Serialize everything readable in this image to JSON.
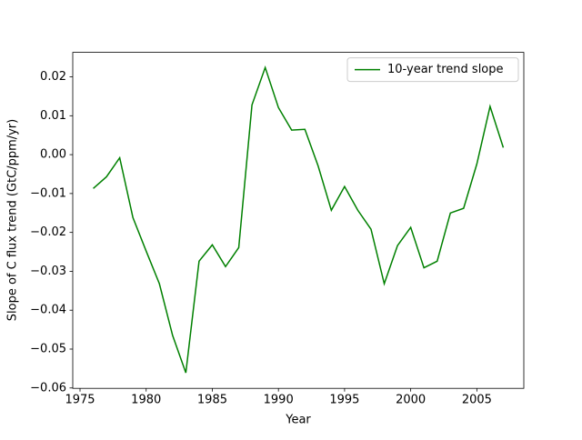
{
  "chart_data": {
    "type": "line",
    "xlabel": "Year",
    "ylabel": "Slope of C flux trend (GtC/ppm/yr)",
    "x": [
      1976,
      1977,
      1978,
      1979,
      1980,
      1981,
      1982,
      1983,
      1984,
      1985,
      1986,
      1987,
      1988,
      1989,
      1990,
      1991,
      1992,
      1993,
      1994,
      1995,
      1996,
      1997,
      1998,
      1999,
      2000,
      2001,
      2002,
      2003,
      2004,
      2005,
      2006,
      2007
    ],
    "series": [
      {
        "name": "10-year trend slope",
        "color": "#008000",
        "values": [
          -0.0087,
          -0.0057,
          -0.0008,
          -0.0162,
          -0.0248,
          -0.0332,
          -0.0465,
          -0.0561,
          -0.0274,
          -0.0232,
          -0.0288,
          -0.0239,
          0.0128,
          0.0224,
          0.0121,
          0.0063,
          0.0065,
          -0.0029,
          -0.0143,
          -0.0082,
          -0.0143,
          -0.0192,
          -0.0332,
          -0.0234,
          -0.0187,
          -0.0291,
          -0.0274,
          -0.015,
          -0.0138,
          -0.0024,
          0.0124,
          0.0018
        ]
      }
    ],
    "xlim": [
      1974.45,
      2008.55
    ],
    "xticks": [
      1975,
      1980,
      1985,
      1990,
      1995,
      2000,
      2005
    ],
    "ylim": [
      -0.0601,
      0.0263
    ],
    "yticks": [
      {
        "value": -0.06,
        "label": "−0.06"
      },
      {
        "value": -0.05,
        "label": "−0.05"
      },
      {
        "value": -0.04,
        "label": "−0.04"
      },
      {
        "value": -0.03,
        "label": "−0.03"
      },
      {
        "value": -0.02,
        "label": "−0.02"
      },
      {
        "value": -0.01,
        "label": "−0.01"
      },
      {
        "value": 0,
        "label": "0.00"
      },
      0.01,
      0.02
    ],
    "legend": "upper right"
  }
}
